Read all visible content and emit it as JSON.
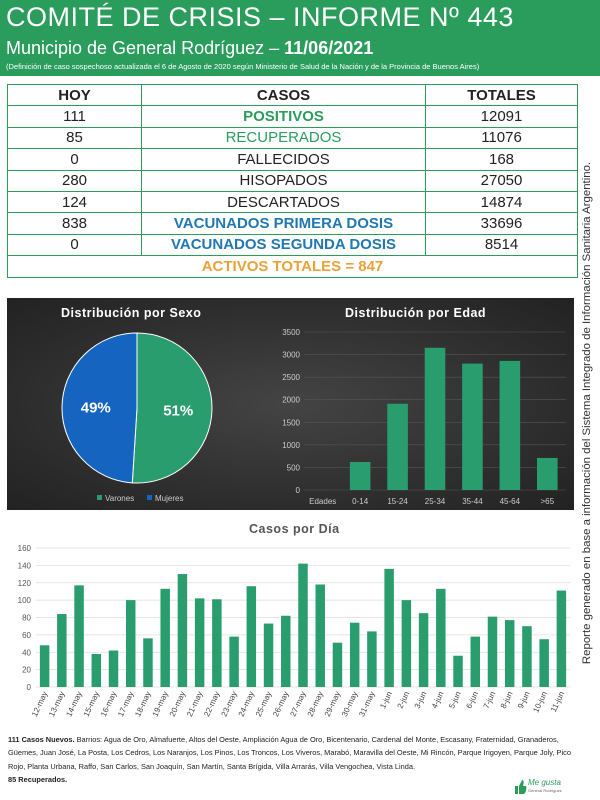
{
  "header": {
    "title": "COMITÉ DE CRISIS – INFORME Nº 443",
    "subtitle_prefix": "Municipio de General Rodríguez – ",
    "date": "11/06/2021",
    "note": "(Definición de caso sospechoso actualizada el 6 de Agosto de 2020 según Ministerio de Salud de la Nación y de la Provincia de Buenos Aires)"
  },
  "table": {
    "headers": [
      "HOY",
      "CASOS",
      "TOTALES"
    ],
    "rows": [
      {
        "hoy": "111",
        "caso": "POSITIVOS",
        "total": "12091"
      },
      {
        "hoy": "85",
        "caso": "RECUPERADOS",
        "total": "11076"
      },
      {
        "hoy": "0",
        "caso": "FALLECIDOS",
        "total": "168"
      },
      {
        "hoy": "280",
        "caso": "HISOPADOS",
        "total": "27050"
      },
      {
        "hoy": "124",
        "caso": "DESCARTADOS",
        "total": "14874"
      },
      {
        "hoy": "838",
        "caso": "VACUNADOS PRIMERA DOSIS",
        "total": "33696"
      },
      {
        "hoy": "0",
        "caso": "VACUNADOS SEGUNDA DOSIS",
        "total": "8514"
      }
    ],
    "activos": "ACTIVOS TOTALES = 847"
  },
  "side_text": "Reporte generado en base a información del Sistema Integrado de Información Sanitaria Argentino.",
  "colors": {
    "green": "#2a9d5c",
    "blue": "#1565c0",
    "orange": "#e8a23a",
    "bar": "#2a9d6e"
  },
  "chart_data": [
    {
      "type": "pie",
      "title": "Distribución por Sexo",
      "labels": [
        "Varones",
        "Mujeres"
      ],
      "values": [
        51,
        49
      ],
      "value_labels": [
        "51%",
        "49%"
      ],
      "colors": [
        "#2a9d6e",
        "#1565c0"
      ],
      "legend": "bottom"
    },
    {
      "type": "bar",
      "title": "Distribución por Edad",
      "xlabel_lead": "Edades",
      "categories": [
        "0-14",
        "15-24",
        "25-34",
        "35-44",
        "45-64",
        ">65"
      ],
      "values": [
        620,
        1910,
        3150,
        2800,
        2860,
        710
      ],
      "ylim": [
        0,
        3500
      ],
      "yticks": [
        0,
        500,
        1000,
        1500,
        2000,
        2500,
        3000,
        3500
      ],
      "grid": true
    },
    {
      "type": "bar",
      "title": "Casos por Día",
      "categories": [
        "12-may",
        "13-may",
        "14-may",
        "15-may",
        "16-may",
        "17-may",
        "18-may",
        "19-may",
        "20-may",
        "21-may",
        "22-may",
        "23-may",
        "24-may",
        "25-may",
        "26-may",
        "27-may",
        "28-may",
        "29-may",
        "30-may",
        "31-may",
        "1-jun",
        "2-jun",
        "3-jun",
        "4-jun",
        "5-jun",
        "6-jun",
        "7-jun",
        "8-jun",
        "9-jun",
        "10-jun",
        "11-jun"
      ],
      "values": [
        48,
        84,
        117,
        38,
        42,
        100,
        56,
        113,
        130,
        102,
        101,
        58,
        116,
        73,
        82,
        142,
        118,
        51,
        74,
        64,
        136,
        100,
        85,
        113,
        36,
        58,
        81,
        77,
        70,
        55,
        111
      ],
      "ylim": [
        0,
        160
      ],
      "yticks": [
        0,
        20,
        40,
        60,
        80,
        100,
        120,
        140,
        160
      ],
      "grid": true
    }
  ],
  "footer": {
    "cases_lead": "111 Casos Nuevos.",
    "cases_text": " Barrios: Agua de Oro, Almafuerte, Altos del Oeste, Ampliación Agua de Oro, Bicentenario, Cardenal del Monte, Escasany, Fraternidad, Granaderos, Güemes, Juan José, La Posta, Los Cedros, Los Naranjos, Los Pinos, Los Troncos, Los Viveros, Marabó, Maravilla del Oeste, Mi Rincón, Parque Irigoyen, Parque Joly, Pico Rojo, Planta Urbana, Raffo, San Carlos, San Joaquín, San Martín, Santa Brígida, Villa Arrarás, Villa Vengochea, Vista Linda.",
    "recuperados": "85 Recuperados."
  },
  "logo": {
    "name": "Me gusta",
    "sub": "General Rodríguez"
  }
}
